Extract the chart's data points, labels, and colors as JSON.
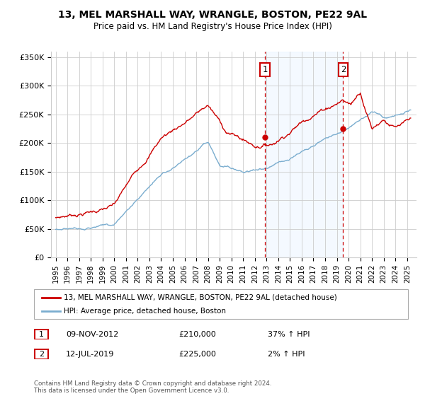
{
  "title": "13, MEL MARSHALL WAY, WRANGLE, BOSTON, PE22 9AL",
  "subtitle": "Price paid vs. HM Land Registry's House Price Index (HPI)",
  "footer": "Contains HM Land Registry data © Crown copyright and database right 2024.\nThis data is licensed under the Open Government Licence v3.0.",
  "legend_line1": "13, MEL MARSHALL WAY, WRANGLE, BOSTON, PE22 9AL (detached house)",
  "legend_line2": "HPI: Average price, detached house, Boston",
  "red_color": "#cc0000",
  "blue_color": "#7aadcf",
  "annotation_box_color": "#cc0000",
  "shaded_region_color": "#ddeeff",
  "sale1_date": "09-NOV-2012",
  "sale1_price": 210000,
  "sale1_hpi": "37% ↑ HPI",
  "sale2_date": "12-JUL-2019",
  "sale2_price": 225000,
  "sale2_hpi": "2% ↑ HPI",
  "ylim_min": 0,
  "ylim_max": 360000,
  "yticks": [
    0,
    50000,
    100000,
    150000,
    200000,
    250000,
    300000,
    350000
  ],
  "ytick_labels": [
    "£0",
    "£50K",
    "£100K",
    "£150K",
    "£200K",
    "£250K",
    "£300K",
    "£350K"
  ],
  "xlim_min": 1994.6,
  "xlim_max": 2025.8,
  "sale1_x": 2012.87,
  "sale2_x": 2019.54
}
